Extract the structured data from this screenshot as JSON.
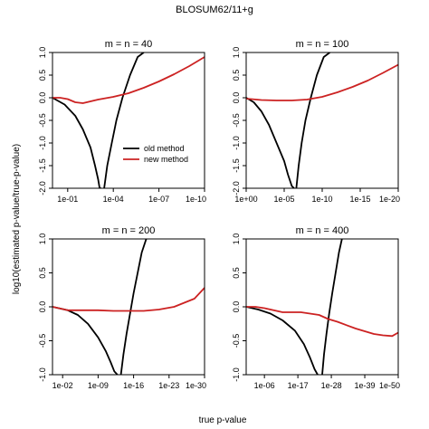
{
  "title": "BLOSUM62/11+g",
  "xlabel": "true p-value",
  "ylabel": "log10(estimated p-value/true-p-value)",
  "legend": [
    {
      "label": "old method",
      "color": "#000000"
    },
    {
      "label": "new method",
      "color": "#cc2222"
    }
  ],
  "chart_data": [
    {
      "type": "line",
      "title": "m = n = 40",
      "xscale": "log10 (reversed)",
      "xlim": [
        0,
        -10
      ],
      "ylim": [
        -2,
        1
      ],
      "xtick_values": [
        -1,
        -4,
        -7,
        -10
      ],
      "xtick_labels": [
        "1e-01",
        "1e-04",
        "1e-07",
        "1e-10"
      ],
      "yticks": [
        "-2.0",
        "-1.5",
        "-1.0",
        "-0.5",
        "0.0",
        "0.5",
        "1.0"
      ],
      "legend_position": "bottom-right",
      "series": [
        {
          "name": "old method",
          "color": "#000000",
          "branch": "lower",
          "x": [
            0,
            -0.8,
            -1.5,
            -2,
            -2.5,
            -2.8,
            -3.0,
            -3.1,
            -3.2
          ],
          "y": [
            0,
            -0.15,
            -0.4,
            -0.7,
            -1.1,
            -1.5,
            -1.8,
            -2.0,
            -2.0
          ]
        },
        {
          "name": "old method",
          "color": "#000000",
          "branch": "upper",
          "x": [
            -3.4,
            -3.6,
            -3.9,
            -4.2,
            -4.6,
            -5.1,
            -5.6,
            -6.0
          ],
          "y": [
            -2.0,
            -1.5,
            -1.0,
            -0.5,
            0.0,
            0.5,
            0.9,
            1.0
          ]
        },
        {
          "name": "new method",
          "color": "#cc2222",
          "x": [
            0,
            -0.5,
            -1,
            -1.5,
            -2,
            -2.5,
            -3,
            -3.5,
            -4,
            -5,
            -6,
            -7,
            -8,
            -9,
            -10
          ],
          "y": [
            0,
            0,
            -0.03,
            -0.1,
            -0.12,
            -0.08,
            -0.04,
            -0.01,
            0.02,
            0.1,
            0.22,
            0.36,
            0.52,
            0.7,
            0.9
          ]
        }
      ]
    },
    {
      "type": "line",
      "title": "m = n = 100",
      "xscale": "log10 (reversed)",
      "xlim": [
        0,
        -20
      ],
      "ylim": [
        -2,
        1
      ],
      "xtick_values": [
        0,
        -5,
        -10,
        -15,
        -20
      ],
      "xtick_labels": [
        "1e+00",
        "1e-05",
        "1e-10",
        "1e-15",
        "1e-20"
      ],
      "yticks": [
        "-2.0",
        "-1.5",
        "-1.0",
        "-0.5",
        "0.0",
        "0.5",
        "1.0"
      ],
      "series": [
        {
          "name": "old method",
          "color": "#000000",
          "branch": "lower",
          "x": [
            0,
            -1,
            -2,
            -3,
            -4,
            -5,
            -5.5,
            -6,
            -6.3
          ],
          "y": [
            0,
            -0.1,
            -0.3,
            -0.6,
            -1.0,
            -1.4,
            -1.7,
            -1.95,
            -2.0
          ]
        },
        {
          "name": "old method",
          "color": "#000000",
          "branch": "upper",
          "x": [
            -6.6,
            -6.9,
            -7.3,
            -7.8,
            -8.5,
            -9.3,
            -10.2,
            -11
          ],
          "y": [
            -2.0,
            -1.5,
            -1.0,
            -0.5,
            0.0,
            0.5,
            0.9,
            1.0
          ]
        },
        {
          "name": "new method",
          "color": "#cc2222",
          "x": [
            0,
            -2,
            -4,
            -6,
            -8,
            -10,
            -12,
            -14,
            -16,
            -18,
            -20
          ],
          "y": [
            -0.02,
            -0.05,
            -0.06,
            -0.06,
            -0.04,
            0.02,
            0.12,
            0.24,
            0.38,
            0.55,
            0.73
          ]
        }
      ]
    },
    {
      "type": "line",
      "title": "m = n = 200",
      "xscale": "log10 (reversed)",
      "xlim": [
        0,
        -30
      ],
      "ylim": [
        -1,
        1
      ],
      "xtick_values": [
        -2,
        -9,
        -16,
        -23,
        -30
      ],
      "xtick_labels": [
        "1e-02",
        "1e-09",
        "1e-16",
        "1e-23",
        "1e-30"
      ],
      "yticks": [
        "-1.0",
        "-0.5",
        "0.0",
        "0.5",
        "1.0"
      ],
      "series": [
        {
          "name": "old method",
          "color": "#000000",
          "branch": "lower",
          "x": [
            0,
            -3,
            -5,
            -7,
            -9,
            -10.5,
            -11.5,
            -12.2,
            -12.8
          ],
          "y": [
            0,
            -0.05,
            -0.12,
            -0.25,
            -0.45,
            -0.65,
            -0.82,
            -0.95,
            -1.0
          ]
        },
        {
          "name": "old method",
          "color": "#000000",
          "branch": "upper",
          "x": [
            -13.5,
            -14,
            -14.6,
            -15.3,
            -16,
            -16.8,
            -17.6,
            -18.5
          ],
          "y": [
            -1.0,
            -0.7,
            -0.4,
            -0.1,
            0.2,
            0.5,
            0.8,
            1.0
          ]
        },
        {
          "name": "new method",
          "color": "#cc2222",
          "x": [
            0,
            -3,
            -6,
            -9,
            -12,
            -15,
            -18,
            -21,
            -24,
            -26,
            -28,
            -29,
            -30
          ],
          "y": [
            0,
            -0.05,
            -0.05,
            -0.05,
            -0.06,
            -0.06,
            -0.06,
            -0.04,
            0,
            0.06,
            0.12,
            0.2,
            0.28
          ]
        }
      ]
    },
    {
      "type": "line",
      "title": "m = n = 400",
      "xscale": "log10 (reversed)",
      "xlim": [
        0,
        -50
      ],
      "ylim": [
        -1,
        1
      ],
      "xtick_values": [
        -6,
        -17,
        -28,
        -39,
        -50
      ],
      "xtick_labels": [
        "1e-06",
        "1e-17",
        "1e-28",
        "1e-39",
        "1e-50"
      ],
      "yticks": [
        "-1.0",
        "-0.5",
        "0.0",
        "0.5",
        "1.0"
      ],
      "series": [
        {
          "name": "old method",
          "color": "#000000",
          "branch": "lower",
          "x": [
            0,
            -4,
            -8,
            -12,
            -16,
            -19,
            -21,
            -22.5,
            -23.5
          ],
          "y": [
            0,
            -0.04,
            -0.1,
            -0.2,
            -0.35,
            -0.55,
            -0.75,
            -0.92,
            -1.0
          ]
        },
        {
          "name": "old method",
          "color": "#000000",
          "branch": "upper",
          "x": [
            -25,
            -25.6,
            -26.4,
            -27.3,
            -28.3,
            -29.4,
            -30.5,
            -31.5
          ],
          "y": [
            -1.0,
            -0.7,
            -0.4,
            -0.1,
            0.2,
            0.5,
            0.8,
            1.0
          ]
        },
        {
          "name": "new method",
          "color": "#cc2222",
          "x": [
            0,
            -3,
            -6,
            -9,
            -12,
            -15,
            -18,
            -21,
            -24,
            -27,
            -30,
            -33,
            -36,
            -39,
            -42,
            -45,
            -48,
            -50
          ],
          "y": [
            0,
            0,
            -0.02,
            -0.05,
            -0.08,
            -0.08,
            -0.08,
            -0.1,
            -0.12,
            -0.18,
            -0.22,
            -0.27,
            -0.32,
            -0.36,
            -0.4,
            -0.42,
            -0.43,
            -0.38
          ]
        }
      ]
    }
  ]
}
